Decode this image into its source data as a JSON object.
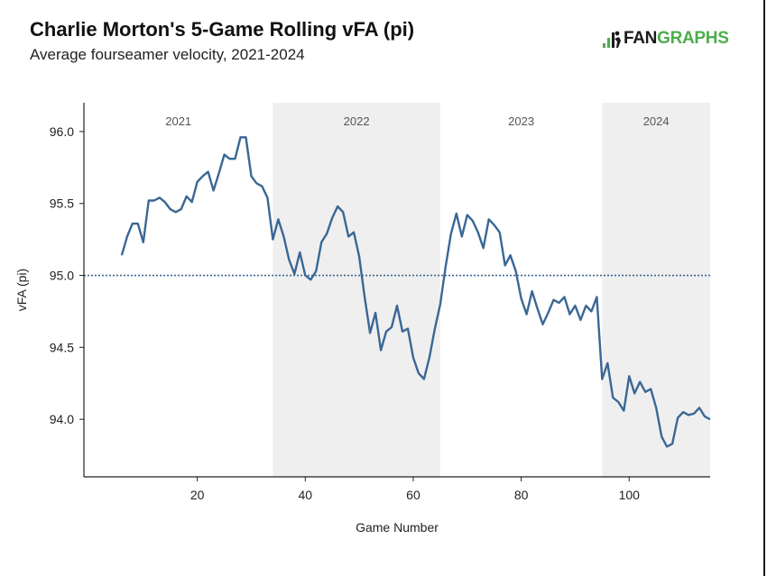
{
  "header": {
    "title": "Charlie Morton's 5-Game Rolling vFA (pi)",
    "subtitle": "Average fourseamer velocity, 2021-2024"
  },
  "logo": {
    "part1": "FAN",
    "part2": "GRAPHS",
    "icon": "fangraphs-bars-icon"
  },
  "colors": {
    "line": "#3a6795",
    "shade": "#efefef",
    "reference": "#3a6795",
    "logo_green": "#4cae4c"
  },
  "chart_data": {
    "type": "line",
    "title": "Charlie Morton's 5-Game Rolling vFA (pi)",
    "subtitle": "Average fourseamer velocity, 2021-2024",
    "xlabel": "Game Number",
    "ylabel": "vFA (pi)",
    "xlim": [
      -1,
      115
    ],
    "ylim": [
      93.6,
      96.2
    ],
    "xticks": [
      20,
      40,
      60,
      80,
      100
    ],
    "yticks": [
      94.0,
      94.5,
      95.0,
      95.5,
      96.0
    ],
    "ytick_labels": [
      "94.0",
      "94.5",
      "95.0",
      "95.5",
      "96.0"
    ],
    "reference_line": 95.0,
    "grid": false,
    "seasons": [
      {
        "label": "2021",
        "start": -1,
        "end": 34,
        "shaded": false
      },
      {
        "label": "2022",
        "start": 34,
        "end": 65,
        "shaded": true
      },
      {
        "label": "2023",
        "start": 65,
        "end": 95,
        "shaded": false
      },
      {
        "label": "2024",
        "start": 95,
        "end": 115,
        "shaded": true
      }
    ],
    "x": [
      6,
      7,
      8,
      9,
      10,
      11,
      12,
      13,
      14,
      15,
      16,
      17,
      18,
      19,
      20,
      21,
      22,
      23,
      24,
      25,
      26,
      27,
      28,
      29,
      30,
      31,
      32,
      33,
      34,
      35,
      36,
      37,
      38,
      39,
      40,
      41,
      42,
      43,
      44,
      45,
      46,
      47,
      48,
      49,
      50,
      51,
      52,
      53,
      54,
      55,
      56,
      57,
      58,
      59,
      60,
      61,
      62,
      63,
      64,
      65,
      66,
      67,
      68,
      69,
      70,
      71,
      72,
      73,
      74,
      75,
      76,
      77,
      78,
      79,
      80,
      81,
      82,
      83,
      84,
      85,
      86,
      87,
      88,
      89,
      90,
      91,
      92,
      93,
      94,
      95,
      96,
      97,
      98,
      99,
      100,
      101,
      102,
      103,
      104,
      105,
      106,
      107,
      108,
      109,
      110,
      111,
      112,
      113,
      114,
      115
    ],
    "values": [
      95.14,
      95.27,
      95.36,
      95.36,
      95.23,
      95.52,
      95.52,
      95.54,
      95.51,
      95.46,
      95.44,
      95.46,
      95.55,
      95.51,
      95.65,
      95.69,
      95.72,
      95.59,
      95.71,
      95.84,
      95.81,
      95.81,
      95.96,
      95.96,
      95.69,
      95.64,
      95.62,
      95.54,
      95.25,
      95.39,
      95.27,
      95.11,
      95.01,
      95.16,
      95.0,
      94.97,
      95.03,
      95.23,
      95.29,
      95.4,
      95.48,
      95.44,
      95.27,
      95.3,
      95.13,
      94.85,
      94.6,
      94.74,
      94.48,
      94.61,
      94.64,
      94.79,
      94.61,
      94.63,
      94.43,
      94.32,
      94.28,
      94.43,
      94.63,
      94.8,
      95.06,
      95.29,
      95.43,
      95.27,
      95.42,
      95.38,
      95.3,
      95.19,
      95.39,
      95.35,
      95.3,
      95.07,
      95.14,
      95.03,
      94.84,
      94.73,
      94.89,
      94.77,
      94.66,
      94.74,
      94.83,
      94.81,
      94.85,
      94.73,
      94.79,
      94.69,
      94.79,
      94.75,
      94.85,
      94.28,
      94.39,
      94.15,
      94.12,
      94.06,
      94.3,
      94.18,
      94.26,
      94.19,
      94.21,
      94.08,
      93.88,
      93.81,
      93.83,
      94.01,
      94.05,
      94.03,
      94.04,
      94.08,
      94.02,
      94.0
    ]
  }
}
